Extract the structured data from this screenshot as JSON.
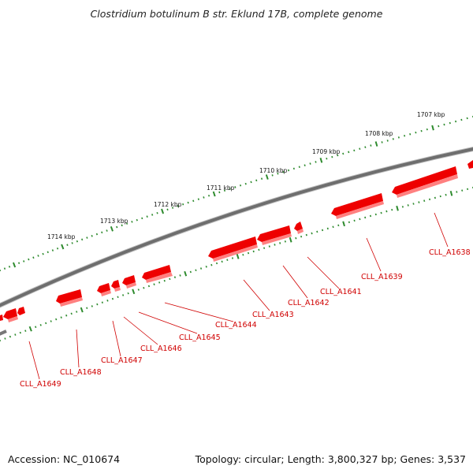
{
  "title": "Clostridium botulinum B str. Eklund 17B, complete genome",
  "footer": {
    "accession": "Accession: NC_010674",
    "summary": "Topology: circular; Length: 3,800,327 bp; Genes: 3,537"
  },
  "colors": {
    "backbone": "#7a7a7a",
    "gene": "#ee0000",
    "gene_label": "#d00000",
    "tick": "#2e8b2e"
  },
  "scale_labels": [
    {
      "kbp": 1707,
      "text": "1707 kbp"
    },
    {
      "kbp": 1708,
      "text": "1708 kbp"
    },
    {
      "kbp": 1709,
      "text": "1709 kbp"
    },
    {
      "kbp": 1710,
      "text": "1710 kbp"
    },
    {
      "kbp": 1711,
      "text": "1711 kbp"
    },
    {
      "kbp": 1712,
      "text": "1712 kbp"
    },
    {
      "kbp": 1713,
      "text": "1713 kbp"
    },
    {
      "kbp": 1714,
      "text": "1714 kbp"
    }
  ],
  "genes": [
    {
      "id": "CLL_A1638",
      "label": "CLL_A1638"
    },
    {
      "id": "CLL_A1639",
      "label": "CLL_A1639"
    },
    {
      "id": "CLL_A1641",
      "label": "CLL_A1641"
    },
    {
      "id": "CLL_A1642",
      "label": "CLL_A1642"
    },
    {
      "id": "CLL_A1643",
      "label": "CLL_A1643"
    },
    {
      "id": "CLL_A1644",
      "label": "CLL_A1644"
    },
    {
      "id": "CLL_A1645",
      "label": "CLL_A1645"
    },
    {
      "id": "CLL_A1646",
      "label": "CLL_A1646"
    },
    {
      "id": "CLL_A1647",
      "label": "CLL_A1647"
    },
    {
      "id": "CLL_A1648",
      "label": "CLL_A1648"
    },
    {
      "id": "CLL_A1649",
      "label": "CLL_A1649"
    }
  ]
}
